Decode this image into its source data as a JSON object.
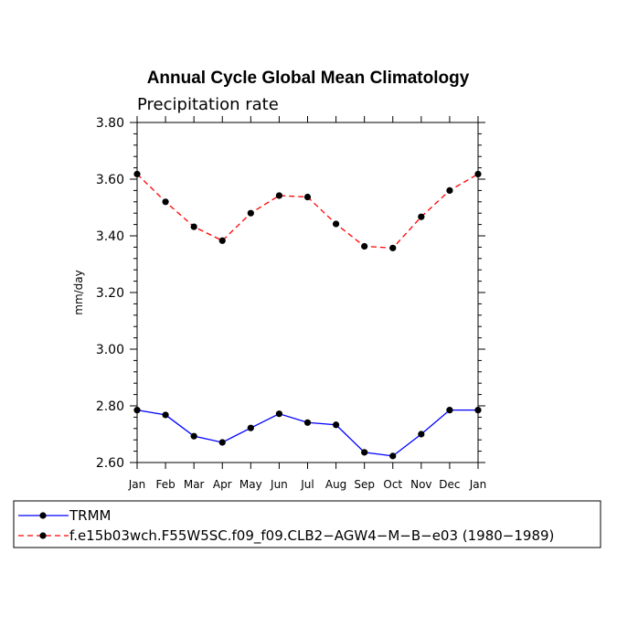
{
  "chart_data": {
    "type": "line",
    "title": "Annual Cycle Global Mean Climatology",
    "subtitle": "Precipitation rate",
    "xlabel": "",
    "ylabel": "mm/day",
    "ylim": [
      2.6,
      3.8
    ],
    "yticks": [
      "2.60",
      "2.80",
      "3.00",
      "3.20",
      "3.40",
      "3.60",
      "3.80"
    ],
    "categories": [
      "Jan",
      "Feb",
      "Mar",
      "Apr",
      "May",
      "Jun",
      "Jul",
      "Aug",
      "Sep",
      "Oct",
      "Nov",
      "Dec",
      "Jan"
    ],
    "series": [
      {
        "name": "TRMM",
        "color": "#0000ff",
        "dash": "solid",
        "values": [
          2.785,
          2.768,
          2.693,
          2.671,
          2.722,
          2.772,
          2.741,
          2.733,
          2.636,
          2.623,
          2.7,
          2.785,
          2.785
        ]
      },
      {
        "name": "f.e15b03wch.F55W5SC.f09_f09.CLB2−AGW4−M−B−e03 (1980−1989)",
        "color": "#ff0000",
        "dash": "dashed",
        "values": [
          3.618,
          3.52,
          3.432,
          3.383,
          3.48,
          3.542,
          3.537,
          3.442,
          3.363,
          3.357,
          3.467,
          3.56,
          3.618
        ]
      }
    ]
  }
}
